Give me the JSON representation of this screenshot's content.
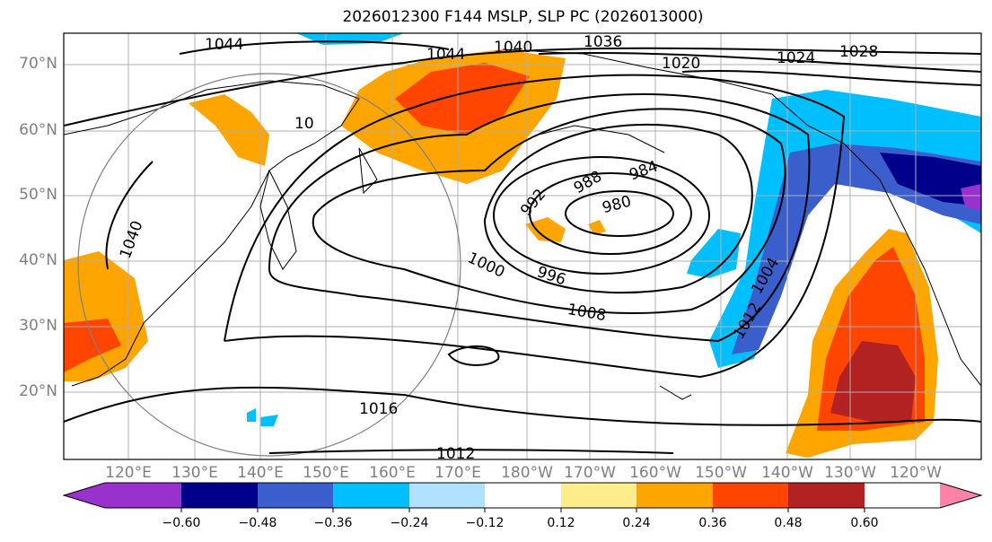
{
  "title": "2026012300 F144 MSLP, SLP PC (2026013000)",
  "lat_labels": [
    "70°N",
    "60°N",
    "50°N",
    "40°N",
    "30°N",
    "20°N"
  ],
  "lon_labels": [
    "120°E",
    "130°E",
    "140°E",
    "150°E",
    "160°E",
    "170°E",
    "180°W",
    "170°W",
    "160°W",
    "150°W",
    "140°W",
    "130°W",
    "120°W"
  ],
  "contour_labels": [
    "1044",
    "1044",
    "1040",
    "1036",
    "1020",
    "1024",
    "1028",
    "1040",
    "992",
    "988",
    "984",
    "980",
    "1000",
    "996",
    "1008",
    "1004",
    "1012",
    "1016",
    "1012",
    "10"
  ],
  "colorbar": {
    "ticks": [
      "−0.60",
      "−0.48",
      "−0.36",
      "−0.24",
      "−0.12",
      "0.12",
      "0.24",
      "0.36",
      "0.48",
      "0.60"
    ],
    "colors": [
      "#9932cc",
      "#00008b",
      "#3a5fcd",
      "#00bfff",
      "#b0e2ff",
      "#ffffff",
      "#ffec8b",
      "#ffa500",
      "#ff4500",
      "#b22222",
      "#ff82ab"
    ]
  }
}
